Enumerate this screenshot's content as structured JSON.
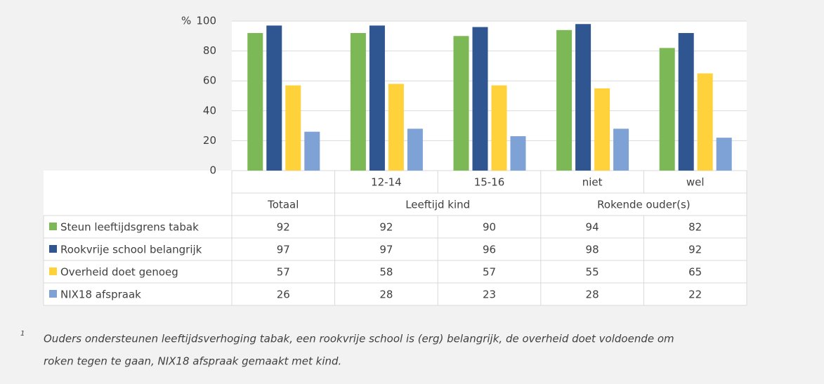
{
  "chart_data": {
    "type": "bar",
    "y_unit": "%",
    "categories": [
      null,
      "12-14",
      "15-16",
      "niet",
      "wel"
    ],
    "category_groups": [
      {
        "label": "Totaal",
        "span": 1
      },
      {
        "label": "Leeftijd kind",
        "span": 2
      },
      {
        "label": "Rokende ouder(s)",
        "span": 2
      }
    ],
    "series": [
      {
        "name": "Steun leeftijdsgrens tabak",
        "color": "#7cb855",
        "values": [
          92,
          92,
          90,
          94,
          82
        ]
      },
      {
        "name": "Rookvrije school belangrijk",
        "color": "#2f5690",
        "values": [
          97,
          97,
          96,
          98,
          92
        ]
      },
      {
        "name": "Overheid doet genoeg",
        "color": "#ffd23c",
        "values": [
          57,
          58,
          57,
          55,
          65
        ]
      },
      {
        "name": "NIX18 afspraak",
        "color": "#7ea2d6",
        "values": [
          26,
          28,
          23,
          28,
          22
        ]
      }
    ],
    "ylim": [
      0,
      100
    ],
    "yticks": [
      0,
      20,
      40,
      60,
      80,
      100
    ],
    "grid": true,
    "footnote_marker": "1",
    "footnote": [
      "Ouders ondersteunen leeftijdsverhoging tabak, een rookvrije school is (erg) belangrijk, de overheid doet voldoende om",
      "roken tegen te gaan, NIX18 afspraak gemaakt met kind."
    ]
  }
}
